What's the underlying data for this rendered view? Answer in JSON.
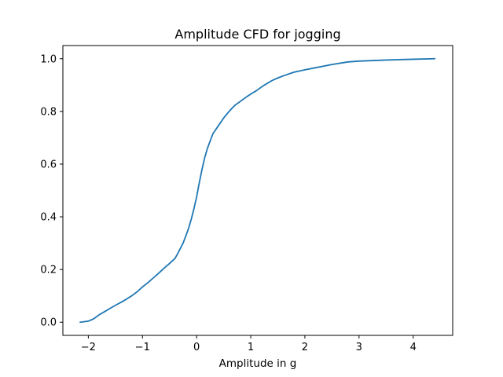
{
  "chart_data": {
    "type": "line",
    "title": "Amplitude CFD for jogging",
    "xlabel": "Amplitude in g",
    "ylabel": "",
    "xlim": [
      -2.47,
      4.73
    ],
    "ylim": [
      -0.05,
      1.05
    ],
    "xticks": [
      -2,
      -1,
      0,
      1,
      2,
      3,
      4
    ],
    "xtick_labels": [
      "−2",
      "−1",
      "0",
      "1",
      "2",
      "3",
      "4"
    ],
    "yticks": [
      0.0,
      0.2,
      0.4,
      0.6,
      0.8,
      1.0
    ],
    "ytick_labels": [
      "0.0",
      "0.2",
      "0.4",
      "0.6",
      "0.8",
      "1.0"
    ],
    "grid": false,
    "series": [
      {
        "color": "#1f77b4",
        "x": [
          -2.15,
          -2.0,
          -1.9,
          -1.8,
          -1.7,
          -1.6,
          -1.5,
          -1.4,
          -1.3,
          -1.2,
          -1.1,
          -1.0,
          -0.9,
          -0.8,
          -0.7,
          -0.6,
          -0.5,
          -0.4,
          -0.35,
          -0.3,
          -0.25,
          -0.2,
          -0.15,
          -0.1,
          -0.05,
          0.0,
          0.05,
          0.1,
          0.15,
          0.2,
          0.3,
          0.4,
          0.5,
          0.6,
          0.7,
          0.8,
          0.9,
          1.0,
          1.1,
          1.2,
          1.3,
          1.4,
          1.5,
          1.6,
          1.8,
          2.0,
          2.2,
          2.5,
          2.8,
          3.0,
          3.5,
          4.0,
          4.4
        ],
        "y": [
          0.0,
          0.004,
          0.013,
          0.028,
          0.04,
          0.052,
          0.064,
          0.075,
          0.087,
          0.1,
          0.115,
          0.134,
          0.15,
          0.168,
          0.186,
          0.205,
          0.223,
          0.242,
          0.26,
          0.28,
          0.3,
          0.327,
          0.355,
          0.39,
          0.43,
          0.475,
          0.53,
          0.58,
          0.625,
          0.66,
          0.715,
          0.745,
          0.775,
          0.8,
          0.822,
          0.837,
          0.852,
          0.866,
          0.878,
          0.893,
          0.906,
          0.918,
          0.927,
          0.935,
          0.949,
          0.958,
          0.966,
          0.978,
          0.988,
          0.991,
          0.995,
          0.998,
          1.0
        ]
      }
    ]
  }
}
